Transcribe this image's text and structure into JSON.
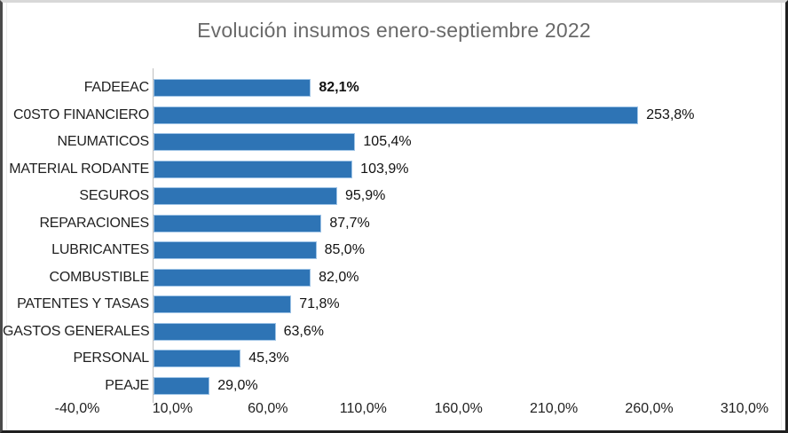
{
  "chart_data": {
    "type": "bar",
    "orientation": "horizontal",
    "title": "Evolución insumos enero-septiembre 2022",
    "points": [
      {
        "category": "FADEEAC",
        "value": 82.1,
        "label": "82,1%",
        "bold": true
      },
      {
        "category": "C0STO FINANCIERO",
        "value": 253.8,
        "label": "253,8%",
        "bold": false
      },
      {
        "category": "NEUMATICOS",
        "value": 105.4,
        "label": "105,4%",
        "bold": false
      },
      {
        "category": "MATERIAL RODANTE",
        "value": 103.9,
        "label": "103,9%",
        "bold": false
      },
      {
        "category": "SEGUROS",
        "value": 95.9,
        "label": "95,9%",
        "bold": false
      },
      {
        "category": "REPARACIONES",
        "value": 87.7,
        "label": "87,7%",
        "bold": false
      },
      {
        "category": "LUBRICANTES",
        "value": 85.0,
        "label": "85,0%",
        "bold": false
      },
      {
        "category": "COMBUSTIBLE",
        "value": 82.0,
        "label": "82,0%",
        "bold": false
      },
      {
        "category": "PATENTES Y TASAS",
        "value": 71.8,
        "label": "71,8%",
        "bold": false
      },
      {
        "category": "GASTOS GENERALES",
        "value": 63.6,
        "label": "63,6%",
        "bold": false
      },
      {
        "category": "PERSONAL",
        "value": 45.3,
        "label": "45,3%",
        "bold": false
      },
      {
        "category": "PEAJE",
        "value": 29.0,
        "label": "29,0%",
        "bold": false
      }
    ],
    "x_axis": {
      "min": -40,
      "max": 310,
      "ticks": [
        -40,
        10,
        60,
        110,
        160,
        210,
        260,
        310
      ],
      "tick_labels": [
        "-40,0%",
        "10,0%",
        "60,0%",
        "110,0%",
        "160,0%",
        "210,0%",
        "260,0%",
        "310,0%"
      ]
    },
    "grid": false,
    "legend": false,
    "colors": {
      "bar_fill": "#2E74B5",
      "bar_border": "#9DC3E6",
      "axis_line": "#BFBFBF",
      "title_text": "#696969",
      "label_text": "#111111"
    }
  }
}
